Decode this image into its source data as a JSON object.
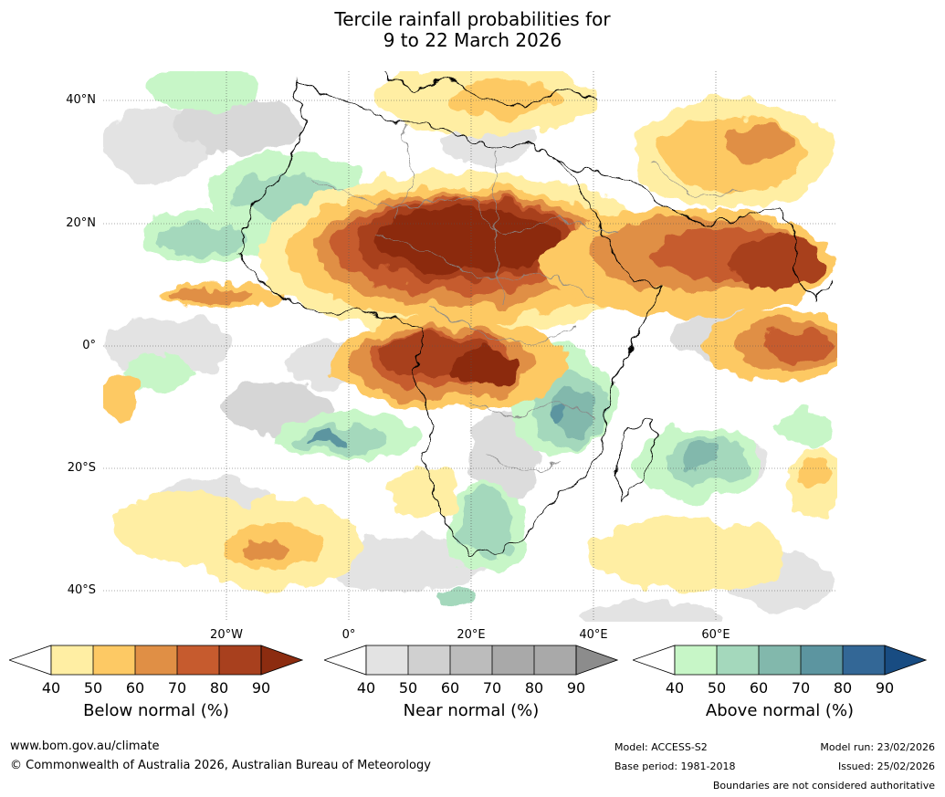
{
  "title": {
    "line1": "Tercile rainfall probabilities for",
    "line2": "9 to 22 March 2026"
  },
  "map": {
    "lat_labels": [
      "40°N",
      "20°N",
      "0°",
      "20°S",
      "40°S"
    ],
    "lon_labels": [
      "20°W",
      "0°",
      "20°E",
      "40°E",
      "60°E"
    ],
    "colors": {
      "below": [
        "#ffeea3",
        "#fdc964",
        "#e08f45",
        "#c65b2e",
        "#a8401e",
        "#8c2c10"
      ],
      "near": [
        "#e3e3e3",
        "#d0d0d0",
        "#bcbcbc",
        "#a9a9a9",
        "#8c8c8c"
      ],
      "above": [
        "#c7f6c7",
        "#a4d8bc",
        "#82b8ac",
        "#5c95a0",
        "#336796",
        "#184c82"
      ]
    }
  },
  "legends": {
    "below": {
      "title": "Below normal (%)",
      "ticks": [
        "40",
        "50",
        "60",
        "70",
        "80",
        "90"
      ]
    },
    "near": {
      "title": "Near normal (%)",
      "ticks": [
        "40",
        "50",
        "60",
        "70",
        "80",
        "90"
      ]
    },
    "above": {
      "title": "Above normal (%)",
      "ticks": [
        "40",
        "50",
        "60",
        "70",
        "80",
        "90"
      ]
    }
  },
  "footer": {
    "url": "www.bom.gov.au/climate",
    "copyright": "© Commonwealth of Australia 2026, Australian Bureau of Meteorology",
    "model": "Model: ACCESS-S2",
    "base_period": "Base period: 1981-2018",
    "model_run": "Model run: 23/02/2026",
    "issued": "Issued: 25/02/2026",
    "disclaimer": "Boundaries are not considered authoritative"
  }
}
